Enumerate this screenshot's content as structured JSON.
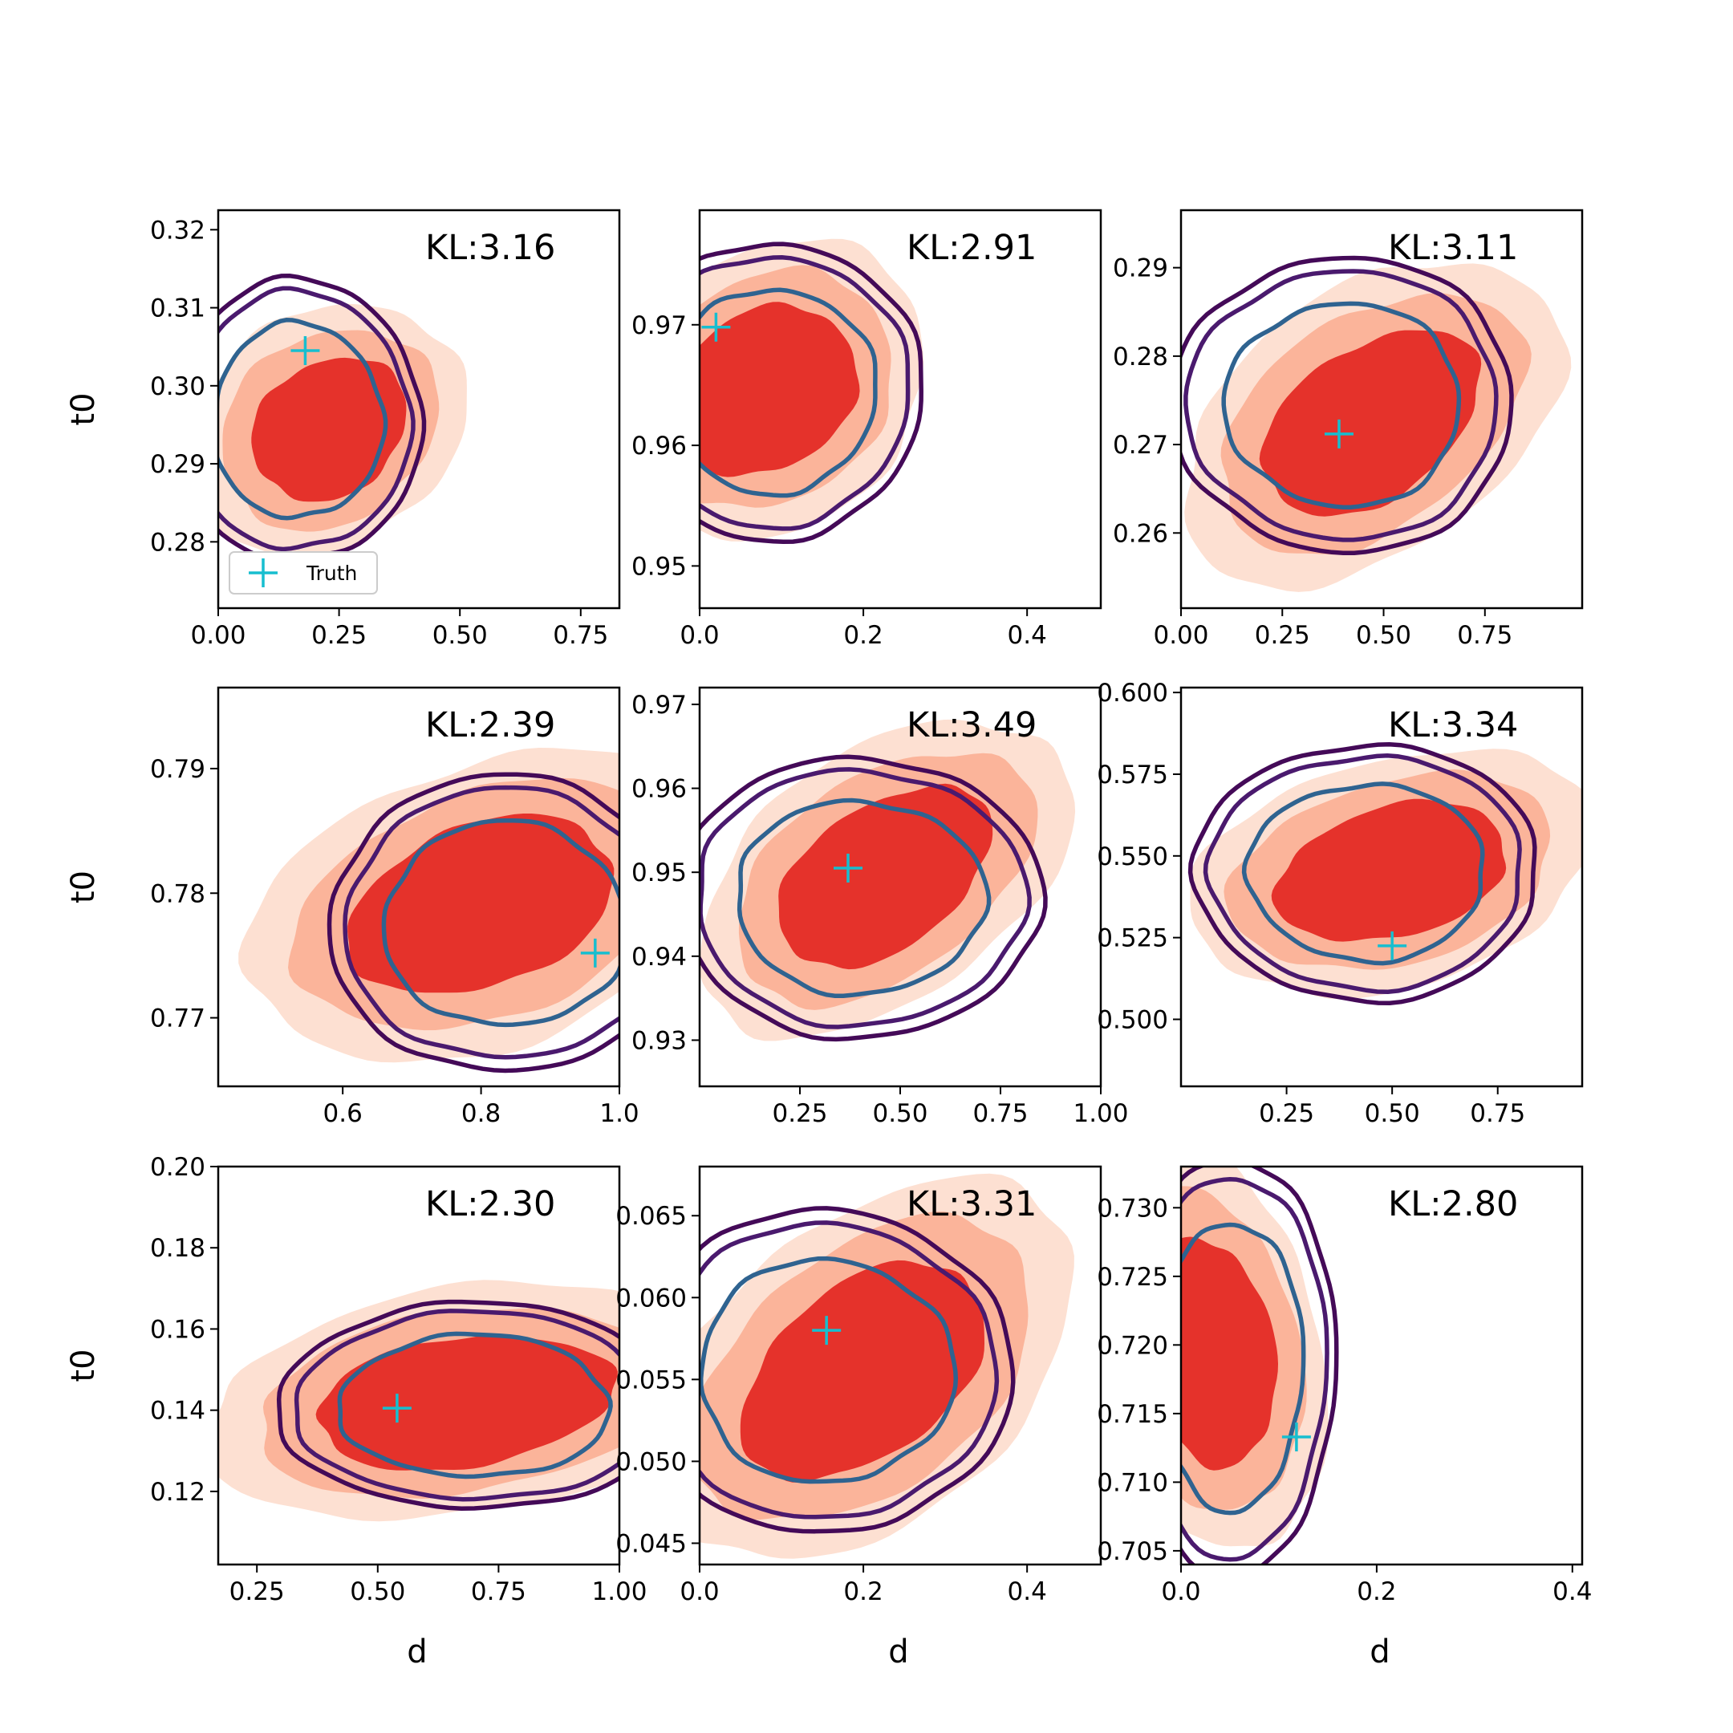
{
  "figure": {
    "legend_label": "Truth",
    "colors": {
      "filled_low": "#fde0d2",
      "filled_mid": "#fbb49a",
      "filled_high": "#e5322b",
      "contour_outer": "#440a58",
      "contour_mid": "#4a1a6e",
      "contour_inner": "#2f6390",
      "truth_marker": "#17becf",
      "axes": "#000000",
      "background": "#ffffff"
    }
  },
  "chart_data": [
    {
      "type": "contour",
      "title": "KL:3.16",
      "xlabel": "",
      "ylabel": "t0",
      "xlim": [
        0.0,
        0.83
      ],
      "ylim": [
        0.2715,
        0.3225
      ],
      "xticks": [
        0.0,
        0.25,
        0.5,
        0.75
      ],
      "xtick_labels": [
        "0.00",
        "0.25",
        "0.50",
        "0.75"
      ],
      "yticks": [
        0.28,
        0.29,
        0.3,
        0.31,
        0.32
      ],
      "ytick_labels": [
        "0.28",
        "0.29",
        "0.30",
        "0.31",
        "0.32"
      ],
      "truth": [
        0.18,
        0.3045
      ],
      "filled_center": [
        0.23,
        0.2945
      ],
      "filled_spread": [
        0.17,
        0.0085
      ],
      "filled_rotation": -35,
      "contour_center": [
        0.165,
        0.2955
      ],
      "contour_spread": [
        0.175,
        0.0125
      ],
      "legend": true
    },
    {
      "type": "contour",
      "title": "KL:2.91",
      "xlabel": "",
      "ylabel": "",
      "xlim": [
        0.0,
        0.49
      ],
      "ylim": [
        0.9465,
        0.9795
      ],
      "xticks": [
        0.0,
        0.2,
        0.4
      ],
      "xtick_labels": [
        "0.0",
        "0.2",
        "0.4"
      ],
      "yticks": [
        0.95,
        0.96,
        0.97
      ],
      "ytick_labels": [
        "0.95",
        "0.96",
        "0.97"
      ],
      "truth": [
        0.02,
        0.9698
      ],
      "filled_center": [
        0.08,
        0.9645
      ],
      "filled_spread": [
        0.12,
        0.0065
      ],
      "filled_rotation": -35,
      "contour_center": [
        0.09,
        0.9645
      ],
      "contour_spread": [
        0.125,
        0.0085
      ],
      "legend": false
    },
    {
      "type": "contour",
      "title": "KL:3.11",
      "xlabel": "",
      "ylabel": "",
      "xlim": [
        0.0,
        0.99
      ],
      "ylim": [
        0.2515,
        0.2965
      ],
      "xticks": [
        0.0,
        0.25,
        0.5,
        0.75
      ],
      "xtick_labels": [
        "0.00",
        "0.25",
        "0.50",
        "0.75"
      ],
      "yticks": [
        0.26,
        0.27,
        0.28,
        0.29
      ],
      "ytick_labels": [
        "0.26",
        "0.27",
        "0.28",
        "0.29"
      ],
      "truth": [
        0.39,
        0.2712
      ],
      "filled_center": [
        0.47,
        0.2725
      ],
      "filled_spread": [
        0.3,
        0.0085
      ],
      "filled_rotation": -35,
      "contour_center": [
        0.4,
        0.2745
      ],
      "contour_spread": [
        0.29,
        0.0115
      ],
      "legend": false
    },
    {
      "type": "contour",
      "title": "KL:2.39",
      "xlabel": "",
      "ylabel": "t0",
      "xlim": [
        0.42,
        1.0
      ],
      "ylim": [
        0.7645,
        0.7965
      ],
      "xticks": [
        0.6,
        0.8,
        1.0
      ],
      "xtick_labels": [
        "0.6",
        "0.8",
        "1.0"
      ],
      "yticks": [
        0.77,
        0.78,
        0.79
      ],
      "ytick_labels": [
        "0.77",
        "0.78",
        "0.79"
      ],
      "truth": [
        0.965,
        0.7752
      ],
      "filled_center": [
        0.8,
        0.779
      ],
      "filled_spread": [
        0.2,
        0.0065
      ],
      "filled_rotation": -20,
      "contour_center": [
        0.835,
        0.7775
      ],
      "contour_spread": [
        0.175,
        0.0082
      ],
      "legend": false
    },
    {
      "type": "contour",
      "title": "KL:3.49",
      "xlabel": "",
      "ylabel": "",
      "xlim": [
        0.0,
        1.0
      ],
      "ylim": [
        0.9245,
        0.972
      ],
      "xticks": [
        0.25,
        0.5,
        0.75,
        1.0
      ],
      "xtick_labels": [
        "0.25",
        "0.50",
        "0.75",
        "1.00"
      ],
      "yticks": [
        0.93,
        0.94,
        0.95,
        0.96,
        0.97
      ],
      "ytick_labels": [
        "0.93",
        "0.94",
        "0.95",
        "0.96",
        "0.97"
      ],
      "truth": [
        0.37,
        0.9505
      ],
      "filled_center": [
        0.46,
        0.9495
      ],
      "filled_spread": [
        0.3,
        0.0085
      ],
      "filled_rotation": -35,
      "contour_center": [
        0.4,
        0.947
      ],
      "contour_spread": [
        0.31,
        0.0115
      ],
      "legend": false
    },
    {
      "type": "contour",
      "title": "KL:3.34",
      "xlabel": "",
      "ylabel": "",
      "xlim": [
        0.0,
        0.95
      ],
      "ylim": [
        0.4795,
        0.6015
      ],
      "xticks": [
        0.25,
        0.5,
        0.75
      ],
      "xtick_labels": [
        "0.25",
        "0.50",
        "0.75"
      ],
      "yticks": [
        0.5,
        0.525,
        0.55,
        0.575,
        0.6
      ],
      "ytick_labels": [
        "0.500",
        "0.525",
        "0.550",
        "0.575",
        "0.600"
      ],
      "truth": [
        0.5,
        0.5225
      ],
      "filled_center": [
        0.5,
        0.545
      ],
      "filled_spread": [
        0.28,
        0.02
      ],
      "filled_rotation": -15,
      "contour_center": [
        0.44,
        0.545
      ],
      "contour_spread": [
        0.28,
        0.027
      ],
      "legend": false
    },
    {
      "type": "contour",
      "title": "KL:2.30",
      "xlabel": "d",
      "ylabel": "t0",
      "xlim": [
        0.17,
        1.0
      ],
      "ylim": [
        0.102,
        0.2
      ],
      "xticks": [
        0.25,
        0.5,
        0.75,
        1.0
      ],
      "xtick_labels": [
        "0.25",
        "0.50",
        "0.75",
        "1.00"
      ],
      "yticks": [
        0.12,
        0.14,
        0.16,
        0.18,
        0.2
      ],
      "ytick_labels": [
        "0.12",
        "0.14",
        "0.16",
        "0.18",
        "0.20"
      ],
      "truth": [
        0.54,
        0.1405
      ],
      "filled_center": [
        0.68,
        0.142
      ],
      "filled_spread": [
        0.31,
        0.016
      ],
      "filled_rotation": -8,
      "contour_center": [
        0.7,
        0.141
      ],
      "contour_spread": [
        0.28,
        0.0175
      ],
      "legend": false
    },
    {
      "type": "contour",
      "title": "KL:3.31",
      "xlabel": "d",
      "ylabel": "",
      "xlim": [
        0.0,
        0.49
      ],
      "ylim": [
        0.0437,
        0.068
      ],
      "xticks": [
        0.0,
        0.2,
        0.4
      ],
      "xtick_labels": [
        "0.0",
        "0.2",
        "0.4"
      ],
      "yticks": [
        0.045,
        0.05,
        0.055,
        0.06,
        0.065
      ],
      "ytick_labels": [
        "0.045",
        "0.050",
        "0.055",
        "0.060",
        "0.065"
      ],
      "truth": [
        0.155,
        0.058
      ],
      "filled_center": [
        0.2,
        0.0555
      ],
      "filled_spread": [
        0.17,
        0.0052
      ],
      "filled_rotation": -38,
      "contour_center": [
        0.155,
        0.0555
      ],
      "contour_spread": [
        0.155,
        0.0068
      ],
      "legend": false
    },
    {
      "type": "contour",
      "title": "KL:2.80",
      "xlabel": "d",
      "ylabel": "",
      "xlim": [
        0.0,
        0.41
      ],
      "ylim": [
        0.704,
        0.733
      ],
      "xticks": [
        0.0,
        0.2,
        0.4
      ],
      "xtick_labels": [
        "0.0",
        "0.2",
        "0.4"
      ],
      "yticks": [
        0.705,
        0.71,
        0.715,
        0.72,
        0.725,
        0.73
      ],
      "ytick_labels": [
        "0.705",
        "0.710",
        "0.715",
        "0.720",
        "0.725",
        "0.730"
      ],
      "truth": [
        0.118,
        0.7133
      ],
      "filled_center": [
        0.03,
        0.7195
      ],
      "filled_spread": [
        0.065,
        0.0085
      ],
      "filled_rotation": -10,
      "contour_center": [
        0.05,
        0.7185
      ],
      "contour_spread": [
        0.075,
        0.0105
      ],
      "legend": false
    }
  ]
}
